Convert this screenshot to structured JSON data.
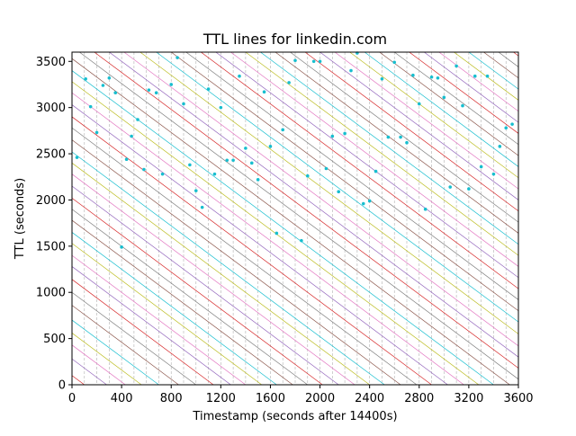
{
  "chart_data": {
    "type": "line",
    "title": "TTL lines for linkedin.com",
    "xlabel": "Timestamp (seconds after 14400s)",
    "ylabel": "TTL (seconds)",
    "xlim": [
      0,
      3600
    ],
    "ylim": [
      0,
      3600
    ],
    "xticks": [
      0,
      400,
      800,
      1200,
      1600,
      2000,
      2400,
      2800,
      3200,
      3600
    ],
    "xtick_labels": [
      "0",
      "400",
      "800",
      "1200",
      "1600",
      "2000",
      "2400",
      "2800",
      "3200",
      "3600"
    ],
    "yticks": [
      0,
      500,
      1000,
      1500,
      2000,
      2500,
      3000,
      3500
    ],
    "ytick_labels": [
      "0",
      "500",
      "1000",
      "1500",
      "2000",
      "2500",
      "3000",
      "3500"
    ],
    "vertical_gridlines_every": 100,
    "line_slope": -1,
    "line_width_note": "thin lines",
    "palette": [
      "#d62728",
      "#9467bd",
      "#e377c2",
      "#bcbd22",
      "#17becf",
      "#8c564b",
      "#7f7f7f"
    ],
    "marker_color": "#17becf",
    "line_intercepts": [
      100,
      280,
      430,
      560,
      700,
      860,
      1000,
      1140,
      1280,
      1400,
      1530,
      1650,
      1780,
      1900,
      2020,
      2150,
      2280,
      2400,
      2520,
      2650,
      2780,
      2900,
      3030,
      3160,
      3280,
      3400,
      3530,
      3660,
      3780,
      3900,
      4020,
      4150,
      4280,
      4400,
      4520,
      4640,
      4760,
      4880,
      5000,
      5120,
      5240,
      5360,
      5480,
      5600,
      5720,
      5840,
      5960,
      6080,
      6200,
      6320,
      6440,
      6560,
      6680,
      6800,
      6920,
      7040,
      7160
    ],
    "points": [
      [
        40,
        2460
      ],
      [
        110,
        3310
      ],
      [
        150,
        3010
      ],
      [
        200,
        2730
      ],
      [
        250,
        3240
      ],
      [
        300,
        3320
      ],
      [
        350,
        3160
      ],
      [
        400,
        1490
      ],
      [
        440,
        2440
      ],
      [
        480,
        2690
      ],
      [
        530,
        2870
      ],
      [
        580,
        2330
      ],
      [
        620,
        3190
      ],
      [
        680,
        3160
      ],
      [
        730,
        2280
      ],
      [
        800,
        3250
      ],
      [
        850,
        3540
      ],
      [
        900,
        3040
      ],
      [
        950,
        2380
      ],
      [
        1000,
        2100
      ],
      [
        1050,
        1920
      ],
      [
        1100,
        3200
      ],
      [
        1150,
        2280
      ],
      [
        1200,
        3000
      ],
      [
        1250,
        2430
      ],
      [
        1300,
        2430
      ],
      [
        1350,
        3340
      ],
      [
        1400,
        2560
      ],
      [
        1450,
        2400
      ],
      [
        1500,
        2220
      ],
      [
        1550,
        3170
      ],
      [
        1600,
        2580
      ],
      [
        1650,
        1640
      ],
      [
        1700,
        2760
      ],
      [
        1750,
        3270
      ],
      [
        1800,
        3510
      ],
      [
        1850,
        1560
      ],
      [
        1900,
        2260
      ],
      [
        1950,
        3500
      ],
      [
        2000,
        3500
      ],
      [
        2050,
        2340
      ],
      [
        2100,
        2690
      ],
      [
        2150,
        2090
      ],
      [
        2200,
        2720
      ],
      [
        2250,
        3400
      ],
      [
        2300,
        3590
      ],
      [
        2350,
        1960
      ],
      [
        2400,
        1990
      ],
      [
        2450,
        2310
      ],
      [
        2500,
        3310
      ],
      [
        2550,
        2680
      ],
      [
        2600,
        3490
      ],
      [
        2650,
        2680
      ],
      [
        2700,
        2620
      ],
      [
        2750,
        3350
      ],
      [
        2800,
        3040
      ],
      [
        2850,
        1900
      ],
      [
        2900,
        3330
      ],
      [
        2950,
        3320
      ],
      [
        3000,
        3110
      ],
      [
        3050,
        2140
      ],
      [
        3100,
        3450
      ],
      [
        3150,
        3020
      ],
      [
        3200,
        2120
      ],
      [
        3250,
        3340
      ],
      [
        3300,
        2360
      ],
      [
        3350,
        3340
      ],
      [
        3400,
        2280
      ],
      [
        3450,
        2580
      ],
      [
        3500,
        2780
      ],
      [
        3550,
        2820
      ]
    ]
  }
}
